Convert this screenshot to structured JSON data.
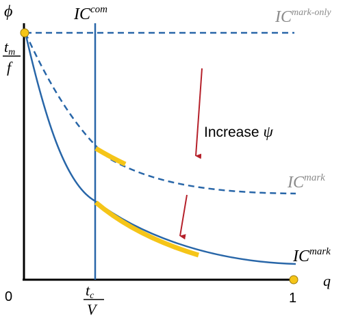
{
  "axes": {
    "y_symbol": "ϕ",
    "x_symbol": "q",
    "origin": "0",
    "x_end": "1",
    "y_tick_num": "t",
    "y_tick_num_sub": "m",
    "y_tick_den": "f",
    "x_tick_num": "t",
    "x_tick_num_sub": "c",
    "x_tick_den": "V"
  },
  "labels": {
    "ic_com_base": "IC",
    "ic_com_sup": "com",
    "ic_mark_only_base": "IC",
    "ic_mark_only_sup": "mark-only",
    "ic_mark_upper_base": "IC",
    "ic_mark_upper_sup": "mark",
    "ic_mark_lower_base": "IC",
    "ic_mark_lower_sup": "mark",
    "increase_text": "Increase",
    "increase_symbol": "ψ"
  },
  "colors": {
    "curve_blue": "#2866a8",
    "highlight_yellow": "#f5c518",
    "arrow_red": "#b5202a",
    "label_gray": "#8a8a8a",
    "axis_black": "#000000",
    "dot_fill": "#f5c518"
  }
}
